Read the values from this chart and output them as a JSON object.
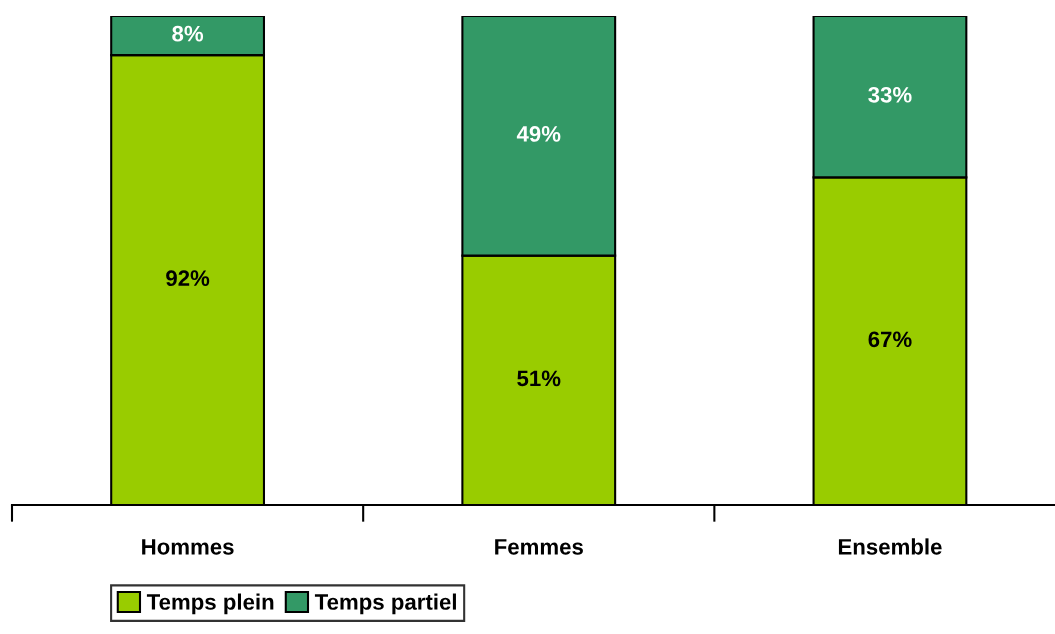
{
  "chart_data": {
    "type": "bar",
    "stacked": true,
    "categories": [
      "Hommes",
      "Femmes",
      "Ensemble"
    ],
    "series": [
      {
        "name": "Temps plein",
        "color": "#99cc00",
        "values": [
          92,
          51,
          67
        ],
        "value_labels": [
          "92%",
          "51%",
          "67%"
        ]
      },
      {
        "name": "Temps partiel",
        "color": "#339966",
        "values": [
          8,
          49,
          33
        ],
        "value_labels": [
          "8%",
          "49%",
          "33%"
        ]
      }
    ],
    "tick_labels": "x",
    "legend": "bottom"
  }
}
